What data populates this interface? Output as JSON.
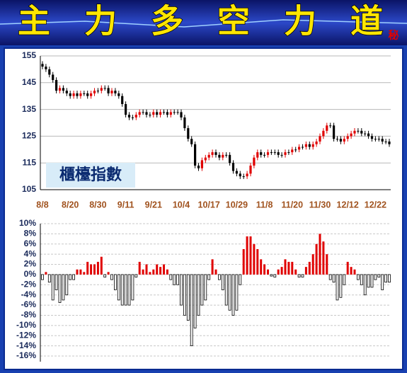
{
  "header": {
    "title_chars": [
      "主",
      "力",
      "多",
      "空",
      "力",
      "道"
    ],
    "badge": "秘"
  },
  "chart_data": [
    {
      "type": "candlestick",
      "annotation": "櫃檯指數",
      "categories": [
        "8/8",
        null,
        null,
        null,
        null,
        null,
        null,
        null,
        "8/20",
        null,
        null,
        null,
        null,
        null,
        null,
        null,
        "8/30",
        null,
        null,
        null,
        null,
        null,
        null,
        null,
        "9/11",
        null,
        null,
        null,
        null,
        null,
        null,
        null,
        "9/21",
        null,
        null,
        null,
        null,
        null,
        null,
        null,
        "10/4",
        null,
        null,
        null,
        null,
        null,
        null,
        null,
        "10/17",
        null,
        null,
        null,
        null,
        null,
        null,
        null,
        "10/29",
        null,
        null,
        null,
        null,
        null,
        null,
        null,
        "11/8",
        null,
        null,
        null,
        null,
        null,
        null,
        null,
        "11/20",
        null,
        null,
        null,
        null,
        null,
        null,
        null,
        "11/30",
        null,
        null,
        null,
        null,
        null,
        null,
        null,
        "12/12",
        null,
        null,
        null,
        null,
        null,
        null,
        null,
        "12/22",
        null,
        null,
        null,
        null
      ],
      "open": [
        152,
        151,
        150,
        148,
        146,
        142,
        143,
        142,
        141,
        140,
        141,
        140,
        141,
        141,
        140,
        141,
        142,
        142,
        143,
        143,
        141,
        142,
        141,
        140,
        137,
        133,
        132,
        132,
        133,
        134,
        134,
        133,
        133,
        134,
        133,
        134,
        134,
        133,
        134,
        134,
        134,
        132,
        128,
        124,
        122,
        114,
        113,
        116,
        117,
        118,
        119,
        118,
        117,
        118,
        118,
        115,
        112,
        111,
        110,
        110,
        111,
        114,
        117,
        119,
        118,
        118,
        119,
        119,
        119,
        118,
        118,
        119,
        119,
        120,
        120,
        121,
        121,
        122,
        121,
        122,
        123,
        125,
        127,
        129,
        129,
        124,
        124,
        123,
        124,
        125,
        126,
        127,
        127,
        126,
        126,
        125,
        124,
        124,
        124,
        123,
        123
      ],
      "high": [
        153,
        152,
        151,
        149,
        147,
        144,
        144,
        143,
        142,
        142,
        142,
        142,
        142,
        142,
        142,
        143,
        143,
        144,
        144,
        144,
        143,
        143,
        142,
        141,
        138,
        134,
        133,
        134,
        135,
        135,
        135,
        134,
        135,
        135,
        135,
        135,
        135,
        135,
        135,
        135,
        135,
        133,
        129,
        125,
        123,
        115,
        117,
        118,
        119,
        120,
        120,
        119,
        119,
        119,
        119,
        116,
        113,
        112,
        111,
        112,
        115,
        118,
        120,
        120,
        119,
        120,
        120,
        120,
        120,
        119,
        120,
        120,
        121,
        121,
        122,
        122,
        123,
        123,
        123,
        124,
        126,
        128,
        130,
        130,
        130,
        125,
        125,
        125,
        126,
        127,
        128,
        128,
        128,
        127,
        127,
        126,
        125,
        125,
        125,
        124,
        124
      ],
      "low": [
        150,
        149,
        147,
        145,
        141,
        141,
        141,
        140,
        139,
        139,
        139,
        139,
        140,
        139,
        139,
        140,
        141,
        141,
        142,
        140,
        140,
        140,
        139,
        136,
        132,
        131,
        131,
        131,
        132,
        133,
        132,
        132,
        132,
        132,
        132,
        133,
        132,
        132,
        133,
        133,
        131,
        127,
        123,
        121,
        113,
        112,
        112,
        115,
        116,
        117,
        117,
        116,
        116,
        117,
        114,
        111,
        110,
        109,
        109,
        109,
        110,
        113,
        116,
        117,
        117,
        117,
        118,
        118,
        117,
        117,
        117,
        118,
        118,
        119,
        119,
        120,
        120,
        120,
        120,
        121,
        122,
        124,
        126,
        128,
        123,
        123,
        122,
        122,
        123,
        124,
        125,
        126,
        125,
        125,
        124,
        123,
        123,
        123,
        122,
        122,
        121
      ],
      "close": [
        151,
        150,
        148,
        146,
        142,
        143,
        142,
        141,
        140,
        141,
        140,
        141,
        141,
        140,
        141,
        142,
        142,
        143,
        143,
        141,
        142,
        141,
        140,
        137,
        133,
        132,
        132,
        133,
        134,
        134,
        133,
        133,
        134,
        133,
        134,
        134,
        133,
        134,
        134,
        134,
        132,
        128,
        124,
        122,
        114,
        113,
        116,
        117,
        118,
        119,
        118,
        117,
        118,
        118,
        115,
        112,
        111,
        110,
        110,
        111,
        114,
        117,
        119,
        118,
        118,
        119,
        119,
        119,
        118,
        118,
        119,
        119,
        120,
        120,
        121,
        121,
        122,
        121,
        122,
        123,
        125,
        127,
        129,
        129,
        124,
        124,
        123,
        124,
        125,
        126,
        127,
        127,
        126,
        126,
        125,
        124,
        124,
        124,
        123,
        123,
        122
      ],
      "ylim": [
        105,
        155
      ],
      "yticks": [
        105,
        115,
        125,
        135,
        145,
        155
      ],
      "up_color": "#e00000",
      "down_color": "#000000",
      "grid": true
    },
    {
      "type": "bar",
      "values": [
        -1,
        0.5,
        -1.5,
        -5,
        -3,
        -5.5,
        -5,
        -4,
        -1,
        -1,
        1,
        1,
        0.5,
        2.5,
        2,
        2,
        2.5,
        3.5,
        -0.5,
        0.5,
        -1,
        -3,
        -5,
        -6,
        -6,
        -6,
        -5,
        -0.5,
        2.5,
        1,
        2,
        0.5,
        1,
        2,
        1.5,
        2,
        1,
        -1,
        -2,
        -2,
        -6,
        -8,
        -9,
        -14,
        -10.5,
        -8,
        -6,
        -5,
        -1,
        3,
        1,
        -1,
        -3,
        -6,
        -7,
        -8,
        -7,
        -2,
        5,
        7.5,
        7.5,
        6,
        5,
        3,
        2,
        1,
        -0.3,
        -0.5,
        1,
        1.5,
        3,
        2.5,
        2.5,
        1,
        -0.5,
        -0.5,
        1.5,
        2.5,
        4,
        6,
        8,
        6.5,
        4,
        -1,
        -1.5,
        -5,
        -4.5,
        -2,
        2.5,
        1.5,
        1,
        -1,
        -2,
        -4,
        -2.5,
        -2.5,
        -1,
        -0.5,
        -3,
        -1.5,
        -1.5
      ],
      "ylim": [
        -16,
        10
      ],
      "yticks": [
        {
          "value": -16,
          "label": "-16%"
        },
        {
          "value": -14,
          "label": "-14%"
        },
        {
          "value": -12,
          "label": "-12%"
        },
        {
          "value": -10,
          "label": "-10%"
        },
        {
          "value": -8,
          "label": "-8%"
        },
        {
          "value": -6,
          "label": "-6%"
        },
        {
          "value": -4,
          "label": "-4%"
        },
        {
          "value": -2,
          "label": "-2%"
        },
        {
          "value": 0,
          "label": "0%"
        },
        {
          "value": 2,
          "label": "2%"
        },
        {
          "value": 4,
          "label": "4%"
        },
        {
          "value": 6,
          "label": "6%"
        },
        {
          "value": 8,
          "label": "8%"
        },
        {
          "value": 10,
          "label": "10%"
        }
      ],
      "up_color": "#e00000",
      "down_color": "#ffffff",
      "grid": true
    }
  ]
}
